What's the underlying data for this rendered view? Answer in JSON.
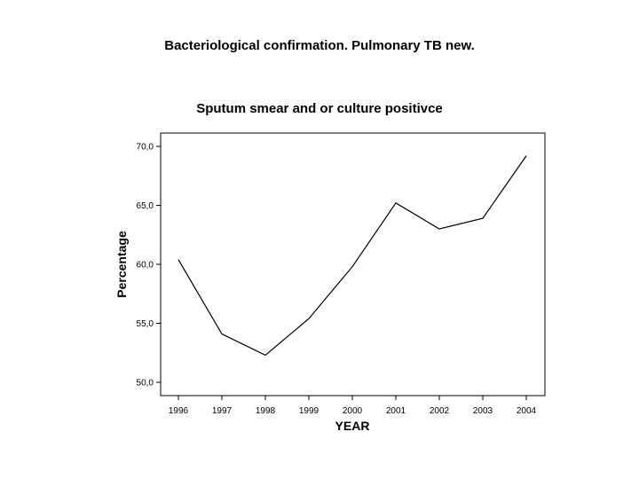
{
  "slide": {
    "title": "Bacteriological confirmation. Pulmonary TB new."
  },
  "chart_data": {
    "type": "line",
    "title": "Sputum smear and or culture positivce",
    "xlabel": "YEAR",
    "ylabel": "Percentage",
    "x": [
      "1996",
      "1997",
      "1998",
      "1999",
      "2000",
      "2001",
      "2002",
      "2003",
      "2004"
    ],
    "series": [
      {
        "values": [
          60.4,
          54.1,
          52.3,
          55.4,
          59.8,
          65.2,
          63.0,
          63.9,
          69.2
        ]
      }
    ],
    "ylim": [
      50.0,
      70.0
    ],
    "yticks": [
      {
        "value": 50.0,
        "label": "50,0"
      },
      {
        "value": 55.0,
        "label": "55,0"
      },
      {
        "value": 60.0,
        "label": "60,0"
      },
      {
        "value": 65.0,
        "label": "65,0"
      },
      {
        "value": 70.0,
        "label": "70,0"
      }
    ],
    "grid": false,
    "legend": "none",
    "line_color": "#000000"
  }
}
